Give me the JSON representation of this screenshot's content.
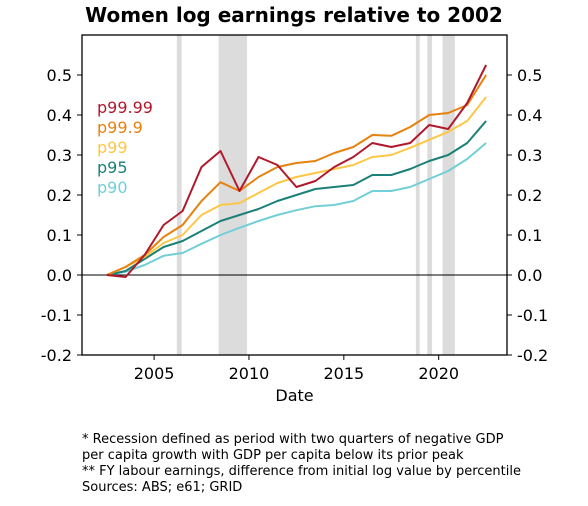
{
  "chart_data": {
    "type": "line",
    "title": "Women log earnings relative to 2002",
    "xlabel": "Date",
    "ylabel": "",
    "xlim": [
      2001.2,
      2023.6
    ],
    "ylim": [
      -0.2,
      0.6
    ],
    "xticks": [
      2005,
      2010,
      2015,
      2020
    ],
    "yticks": [
      -0.2,
      -0.1,
      0.0,
      0.1,
      0.2,
      0.3,
      0.4,
      0.5
    ],
    "ytick_labels": [
      "-0.2",
      "-0.1",
      "0.0",
      "0.1",
      "0.2",
      "0.3",
      "0.4",
      "0.5"
    ],
    "grid": false,
    "legend_position": "upper-left",
    "recessions": [
      {
        "start": 2006.2,
        "end": 2006.45
      },
      {
        "start": 2008.4,
        "end": 2009.9
      },
      {
        "start": 2018.8,
        "end": 2019.0
      },
      {
        "start": 2019.4,
        "end": 2019.65
      },
      {
        "start": 2020.2,
        "end": 2020.85
      }
    ],
    "x": [
      2002.5,
      2003.5,
      2004.5,
      2005.5,
      2006.5,
      2007.5,
      2008.5,
      2009.5,
      2010.5,
      2011.5,
      2012.5,
      2013.5,
      2014.5,
      2015.5,
      2016.5,
      2017.5,
      2018.5,
      2019.5,
      2020.5,
      2021.5,
      2022.5
    ],
    "series": [
      {
        "name": "p99.99",
        "color": "#b2182b",
        "values": [
          0.0,
          -0.005,
          0.05,
          0.125,
          0.16,
          0.27,
          0.31,
          0.21,
          0.295,
          0.275,
          0.22,
          0.235,
          0.27,
          0.295,
          0.33,
          0.32,
          0.33,
          0.375,
          0.365,
          0.43,
          0.525
        ]
      },
      {
        "name": "p99.9",
        "color": "#e6820e",
        "values": [
          0.0,
          0.02,
          0.05,
          0.095,
          0.125,
          0.185,
          0.232,
          0.21,
          0.245,
          0.27,
          0.28,
          0.285,
          0.305,
          0.32,
          0.35,
          0.348,
          0.37,
          0.4,
          0.405,
          0.425,
          0.5
        ]
      },
      {
        "name": "p99",
        "color": "#fdc745",
        "values": [
          0.0,
          0.02,
          0.045,
          0.08,
          0.1,
          0.15,
          0.175,
          0.18,
          0.205,
          0.23,
          0.245,
          0.255,
          0.265,
          0.275,
          0.295,
          0.3,
          0.318,
          0.338,
          0.358,
          0.385,
          0.445
        ]
      },
      {
        "name": "p95",
        "color": "#1b8178",
        "values": [
          0.0,
          0.01,
          0.04,
          0.07,
          0.085,
          0.11,
          0.135,
          0.15,
          0.165,
          0.185,
          0.2,
          0.215,
          0.22,
          0.225,
          0.25,
          0.25,
          0.265,
          0.285,
          0.3,
          0.33,
          0.385
        ]
      },
      {
        "name": "p90",
        "color": "#72cfd6",
        "values": [
          0.0,
          0.008,
          0.025,
          0.048,
          0.055,
          0.078,
          0.1,
          0.118,
          0.135,
          0.15,
          0.162,
          0.172,
          0.175,
          0.185,
          0.21,
          0.21,
          0.22,
          0.24,
          0.26,
          0.29,
          0.33
        ]
      }
    ]
  },
  "notes": [
    "* Recession defined as period with two quarters of negative GDP",
    "per capita growth with GDP per capita below its prior peak",
    "** FY labour earnings, difference from initial log value by percentile",
    "Sources: ABS; e61; GRID"
  ]
}
